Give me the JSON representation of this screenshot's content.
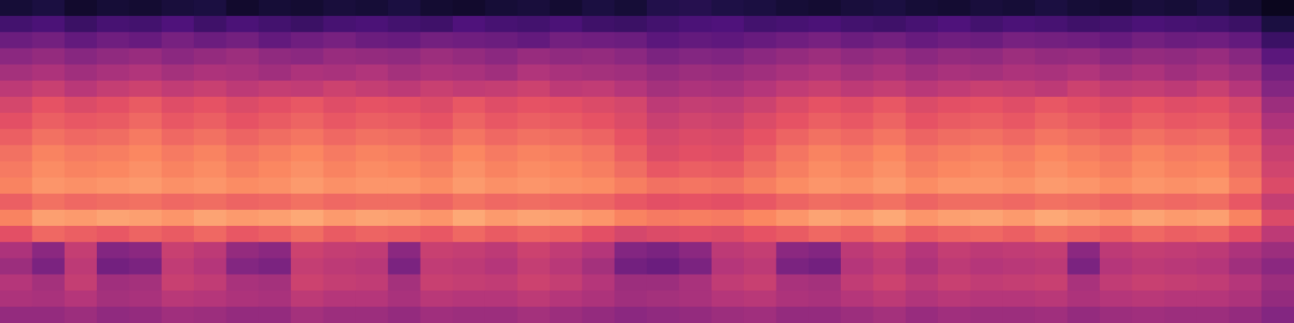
{
  "chart_data": {
    "type": "heatmap",
    "tick_labels": false,
    "zlim": [
      0,
      100
    ],
    "cells": [
      [
        10,
        12,
        8,
        10,
        9,
        11,
        12,
        8,
        10,
        9,
        11,
        10,
        12,
        9,
        8,
        10,
        11,
        9,
        12,
        10,
        14,
        15,
        13,
        12,
        10,
        9,
        11,
        12,
        10,
        9,
        11,
        10,
        12,
        10,
        9,
        11,
        10,
        12,
        9,
        5
      ],
      [
        22,
        24,
        20,
        23,
        22,
        25,
        21,
        24,
        22,
        20,
        23,
        24,
        22,
        21,
        25,
        23,
        22,
        24,
        21,
        20,
        22,
        24,
        25,
        22,
        23,
        24,
        22,
        21,
        23,
        25,
        22,
        24,
        23,
        21,
        22,
        24,
        23,
        22,
        20,
        12
      ],
      [
        32,
        34,
        30,
        33,
        31,
        35,
        32,
        34,
        30,
        33,
        35,
        32,
        31,
        34,
        33,
        32,
        30,
        34,
        33,
        32,
        28,
        30,
        29,
        31,
        33,
        35,
        32,
        34,
        31,
        33,
        32,
        35,
        34,
        33,
        31,
        34,
        32,
        33,
        30,
        20
      ],
      [
        40,
        42,
        39,
        41,
        43,
        40,
        42,
        44,
        41,
        40,
        43,
        42,
        41,
        44,
        42,
        40,
        43,
        41,
        42,
        40,
        36,
        38,
        37,
        40,
        42,
        44,
        41,
        43,
        40,
        42,
        41,
        44,
        42,
        43,
        40,
        42,
        41,
        43,
        39,
        28
      ],
      [
        46,
        48,
        45,
        47,
        49,
        46,
        48,
        47,
        45,
        48,
        47,
        49,
        46,
        48,
        47,
        45,
        49,
        47,
        46,
        45,
        42,
        44,
        43,
        45,
        47,
        49,
        46,
        48,
        45,
        47,
        46,
        48,
        47,
        49,
        46,
        48,
        45,
        47,
        44,
        34
      ],
      [
        52,
        55,
        51,
        54,
        56,
        53,
        55,
        52,
        54,
        53,
        56,
        54,
        52,
        55,
        53,
        54,
        56,
        52,
        53,
        50,
        46,
        48,
        47,
        50,
        53,
        55,
        52,
        54,
        51,
        53,
        55,
        54,
        52,
        56,
        53,
        54,
        52,
        55,
        50,
        38
      ],
      [
        58,
        63,
        60,
        62,
        65,
        61,
        63,
        60,
        62,
        64,
        61,
        63,
        62,
        60,
        64,
        61,
        63,
        62,
        60,
        58,
        52,
        54,
        53,
        56,
        60,
        63,
        61,
        64,
        60,
        62,
        63,
        61,
        64,
        62,
        60,
        63,
        61,
        62,
        58,
        44
      ],
      [
        62,
        66,
        64,
        65,
        68,
        64,
        66,
        63,
        65,
        67,
        64,
        66,
        65,
        63,
        67,
        64,
        66,
        65,
        63,
        60,
        55,
        57,
        56,
        60,
        63,
        66,
        64,
        67,
        63,
        65,
        66,
        64,
        67,
        65,
        63,
        66,
        64,
        65,
        61,
        48
      ],
      [
        66,
        70,
        68,
        69,
        72,
        68,
        70,
        67,
        69,
        71,
        68,
        70,
        69,
        67,
        71,
        68,
        70,
        69,
        67,
        63,
        58,
        60,
        59,
        63,
        67,
        70,
        68,
        71,
        67,
        69,
        70,
        68,
        71,
        69,
        67,
        70,
        68,
        69,
        64,
        52
      ],
      [
        70,
        74,
        72,
        73,
        75,
        72,
        74,
        71,
        73,
        75,
        72,
        74,
        73,
        71,
        75,
        72,
        74,
        73,
        71,
        66,
        60,
        62,
        61,
        66,
        71,
        74,
        72,
        75,
        71,
        73,
        74,
        72,
        75,
        73,
        71,
        74,
        72,
        73,
        67,
        55
      ],
      [
        72,
        76,
        74,
        75,
        77,
        74,
        76,
        73,
        75,
        77,
        74,
        76,
        75,
        73,
        77,
        74,
        76,
        75,
        73,
        69,
        64,
        66,
        65,
        69,
        73,
        76,
        74,
        77,
        73,
        75,
        76,
        74,
        77,
        75,
        73,
        76,
        74,
        75,
        69,
        57
      ],
      [
        74,
        78,
        77,
        78,
        79,
        77,
        78,
        76,
        77,
        79,
        77,
        78,
        78,
        76,
        79,
        77,
        78,
        77,
        76,
        73,
        70,
        71,
        70,
        73,
        76,
        78,
        77,
        79,
        76,
        78,
        78,
        77,
        79,
        78,
        76,
        78,
        77,
        78,
        72,
        60
      ],
      [
        66,
        70,
        68,
        69,
        70,
        68,
        69,
        67,
        68,
        70,
        68,
        69,
        69,
        67,
        70,
        68,
        69,
        68,
        67,
        64,
        62,
        63,
        62,
        64,
        67,
        69,
        68,
        70,
        67,
        69,
        69,
        68,
        70,
        69,
        67,
        69,
        68,
        69,
        64,
        54
      ],
      [
        74,
        80,
        79,
        81,
        80,
        78,
        81,
        79,
        80,
        82,
        79,
        81,
        80,
        78,
        82,
        79,
        81,
        80,
        78,
        74,
        72,
        73,
        72,
        75,
        78,
        81,
        79,
        82,
        78,
        80,
        81,
        79,
        82,
        80,
        78,
        81,
        79,
        80,
        74,
        60
      ],
      [
        62,
        68,
        66,
        64,
        67,
        65,
        68,
        64,
        66,
        69,
        65,
        67,
        66,
        64,
        68,
        65,
        67,
        66,
        62,
        58,
        60,
        61,
        60,
        63,
        65,
        68,
        66,
        69,
        65,
        67,
        68,
        66,
        69,
        67,
        65,
        68,
        66,
        67,
        62,
        52
      ],
      [
        48,
        40,
        54,
        38,
        40,
        55,
        52,
        42,
        40,
        56,
        54,
        53,
        40,
        55,
        54,
        52,
        56,
        53,
        50,
        38,
        36,
        40,
        52,
        54,
        40,
        38,
        52,
        55,
        50,
        54,
        52,
        53,
        54,
        40,
        52,
        54,
        53,
        52,
        48,
        44
      ],
      [
        44,
        36,
        52,
        34,
        36,
        53,
        50,
        38,
        36,
        54,
        52,
        51,
        36,
        53,
        52,
        50,
        54,
        51,
        46,
        34,
        32,
        36,
        50,
        52,
        36,
        34,
        50,
        53,
        48,
        52,
        50,
        51,
        52,
        36,
        50,
        52,
        51,
        50,
        45,
        40
      ],
      [
        50,
        46,
        54,
        45,
        46,
        55,
        53,
        47,
        46,
        56,
        54,
        53,
        46,
        55,
        54,
        53,
        56,
        54,
        50,
        44,
        44,
        47,
        53,
        55,
        47,
        46,
        53,
        56,
        52,
        55,
        53,
        54,
        55,
        47,
        53,
        55,
        54,
        53,
        50,
        44
      ],
      [
        48,
        47,
        50,
        46,
        47,
        51,
        50,
        48,
        47,
        52,
        50,
        50,
        47,
        51,
        50,
        50,
        52,
        50,
        48,
        45,
        46,
        47,
        50,
        51,
        48,
        47,
        50,
        52,
        49,
        51,
        50,
        50,
        51,
        48,
        50,
        51,
        50,
        50,
        48,
        42
      ],
      [
        42,
        42,
        44,
        41,
        42,
        45,
        44,
        42,
        42,
        46,
        44,
        44,
        42,
        45,
        44,
        44,
        46,
        44,
        42,
        40,
        41,
        42,
        44,
        45,
        42,
        42,
        44,
        46,
        43,
        45,
        44,
        44,
        45,
        42,
        44,
        45,
        44,
        44,
        42,
        38
      ]
    ]
  }
}
